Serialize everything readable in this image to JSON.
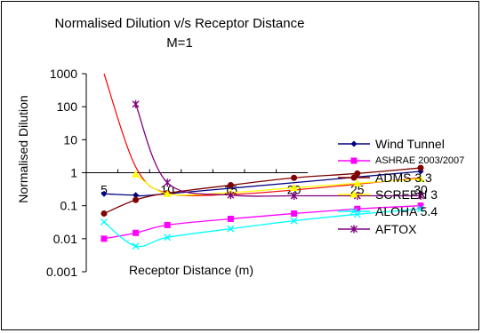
{
  "chart_data": {
    "type": "line",
    "title": "Normalised Dilution v/s Receptor Distance",
    "subtitle": "M=1",
    "xlabel": "Receptor Distance (m)",
    "ylabel": "Normalised Dilution",
    "y_scale": "log",
    "ylim": [
      0.001,
      1000
    ],
    "y_tick_labels": [
      "1000",
      "100",
      "10",
      "1",
      "0.1",
      "0.01",
      "0.001"
    ],
    "x_tick_labels": [
      "5",
      "10",
      "15",
      "20",
      "25",
      "30"
    ],
    "grid": false,
    "legend_position": "right",
    "series": [
      {
        "name": "Wind Tunnel",
        "color": "#000080",
        "marker": "diamond",
        "x": [
          5,
          7.5,
          10,
          30
        ],
        "y": [
          0.23,
          0.21,
          0.23,
          1.1
        ]
      },
      {
        "name": "ASHRAE 2003/2007",
        "color": "#FF00FF",
        "marker": "square",
        "x": [
          5,
          7.5,
          10,
          15,
          20,
          25,
          30
        ],
        "y": [
          0.01,
          0.015,
          0.026,
          0.04,
          0.058,
          0.08,
          0.1
        ]
      },
      {
        "name": "ADMS 3.3",
        "color": "#800000",
        "marker": "circle",
        "x": [
          5,
          7.5,
          10,
          15,
          20,
          25,
          30
        ],
        "y": [
          0.058,
          0.15,
          0.24,
          0.42,
          0.7,
          0.95,
          1.4
        ]
      },
      {
        "name": "SCREEN 3",
        "color": "#FFFF00",
        "marker": "triangle",
        "x": [
          7.5,
          10,
          15,
          20,
          25,
          30
        ],
        "y": [
          0.9,
          0.23,
          0.25,
          0.35,
          0.48,
          0.65
        ]
      },
      {
        "name": "ALOHA 5.4",
        "color": "#00FFFF",
        "marker": "x",
        "x": [
          5,
          7.5,
          10,
          15,
          20,
          25,
          30
        ],
        "y": [
          0.032,
          0.006,
          0.011,
          0.02,
          0.035,
          0.055,
          0.08
        ]
      },
      {
        "name": "AFTOX",
        "color": "#800080",
        "marker": "asterisk",
        "x": [
          7.5,
          10,
          15,
          20,
          25,
          30
        ],
        "y": [
          120,
          0.5,
          0.21,
          0.2,
          0.2,
          0.2
        ]
      }
    ],
    "extra_curve": {
      "color": "#FF0000",
      "x": [
        5,
        7.5,
        10,
        15,
        20,
        25,
        30
      ],
      "y": [
        1000,
        1.5,
        0.24,
        0.22,
        0.3,
        0.45,
        0.7
      ]
    }
  }
}
